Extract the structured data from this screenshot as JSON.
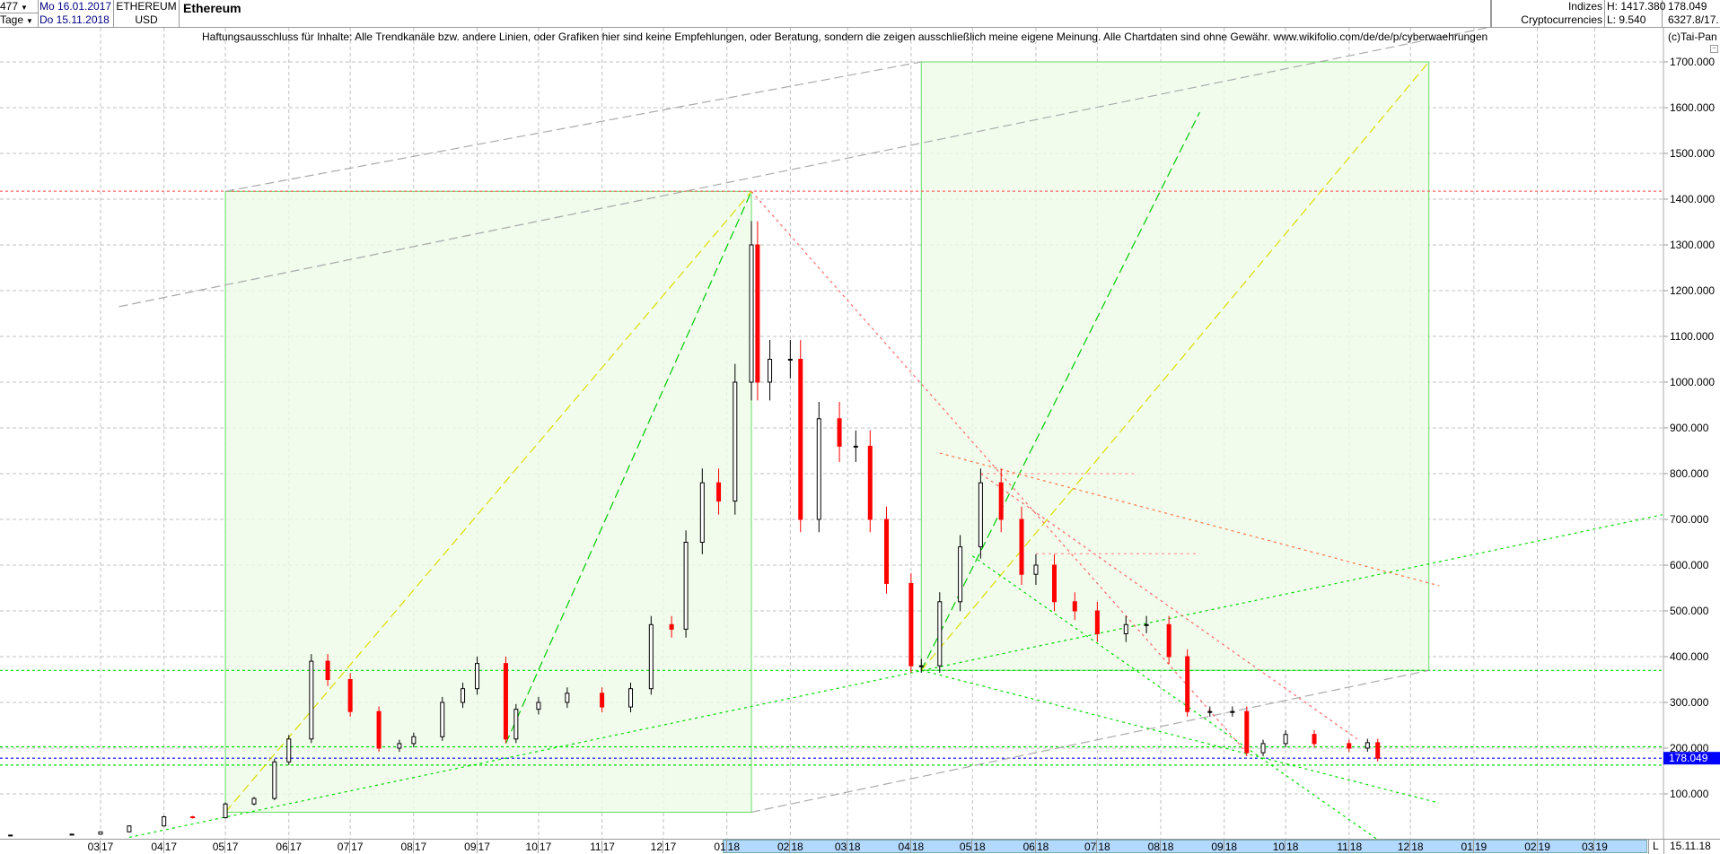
{
  "header": {
    "bar_count": "477",
    "period": "Tage",
    "date_from": "Mo 16.01.2017",
    "date_to": "Do 15.11.2018",
    "symbol": "ETHEREUM",
    "currency": "USD",
    "title": "Ethereum",
    "group1": "Indizes",
    "group2": "Cryptocurrencies",
    "high": "H: 1417.380",
    "low": "L: 9.540",
    "last": "178.049",
    "extra": "6327.8/17."
  },
  "disclaimer": "Haftungsausschluss für Inhalte: Alle Trendkanäle bzw. andere Linien, oder Grafiken hier sind keine Empfehlungen, oder Beratung, sondern die zeigen ausschließlich meine eigene Meinung. Alle Chartdaten sind ohne Gewähr.  www.wikifolio.com/de/de/p/cyberwaehrungen",
  "copyright": "(c)Tai-Pan",
  "footer": {
    "mode": "L",
    "date": "15.11.18"
  },
  "colors": {
    "up": "#000000",
    "down": "#ff0000",
    "last_price": "#0000ff",
    "grid": "#c0c0c0",
    "box_fill": "#eefbe8",
    "box_stroke": "#66dd66"
  },
  "chart_data": {
    "type": "candlestick",
    "ylim": [
      0,
      1750
    ],
    "xlim": [
      "2017-01-16",
      "2019-04-03"
    ],
    "yticks": [
      100,
      200,
      300,
      400,
      500,
      600,
      700,
      800,
      900,
      1000,
      1100,
      1200,
      1300,
      1400,
      1500,
      1600,
      1700
    ],
    "ytick_labels": [
      "100.000",
      "200.000",
      "300.000",
      "400.000",
      "500.000",
      "600.000",
      "700.000",
      "800.000",
      "900.000",
      "1000.000",
      "1100.000",
      "1200.000",
      "1300.000",
      "1400.000",
      "1500.000",
      "1600.000",
      "1700.000"
    ],
    "xticks": [
      "2017-03-01",
      "2017-04-01",
      "2017-05-01",
      "2017-06-01",
      "2017-07-01",
      "2017-08-01",
      "2017-09-01",
      "2017-10-01",
      "2017-11-01",
      "2017-12-01",
      "2018-01-01",
      "2018-02-01",
      "2018-03-01",
      "2018-04-01",
      "2018-05-01",
      "2018-06-01",
      "2018-07-01",
      "2018-08-01",
      "2018-09-01",
      "2018-10-01",
      "2018-11-01",
      "2018-12-01",
      "2019-01-01",
      "2019-02-01",
      "2019-03-01"
    ],
    "xtick_labels": [
      "03 17",
      "04 17",
      "05 17",
      "06 17",
      "07 17",
      "08 17",
      "09 17",
      "10 17",
      "11 17",
      "12 17",
      "01 18",
      "02 18",
      "03 18",
      "04 18",
      "05 18",
      "06 18",
      "07 18",
      "08 18",
      "09 18",
      "10 18",
      "11 18",
      "12 18",
      "01 19",
      "02 19",
      "03 19"
    ],
    "grid": true,
    "last_value": 178.049,
    "last_value_label": "178.049",
    "series": [
      [
        "2017-01-16",
        10
      ],
      [
        "2017-02-15",
        12
      ],
      [
        "2017-03-01",
        17
      ],
      [
        "2017-03-15",
        30
      ],
      [
        "2017-04-01",
        50
      ],
      [
        "2017-04-15",
        48
      ],
      [
        "2017-05-01",
        78
      ],
      [
        "2017-05-15",
        90
      ],
      [
        "2017-05-25",
        170
      ],
      [
        "2017-06-01",
        220
      ],
      [
        "2017-06-12",
        390
      ],
      [
        "2017-06-20",
        350
      ],
      [
        "2017-07-01",
        280
      ],
      [
        "2017-07-15",
        200
      ],
      [
        "2017-07-25",
        210
      ],
      [
        "2017-08-01",
        225
      ],
      [
        "2017-08-15",
        300
      ],
      [
        "2017-08-25",
        330
      ],
      [
        "2017-09-01",
        385
      ],
      [
        "2017-09-15",
        220
      ],
      [
        "2017-09-20",
        285
      ],
      [
        "2017-10-01",
        300
      ],
      [
        "2017-10-15",
        320
      ],
      [
        "2017-11-01",
        290
      ],
      [
        "2017-11-15",
        330
      ],
      [
        "2017-11-25",
        470
      ],
      [
        "2017-12-05",
        460
      ],
      [
        "2017-12-12",
        650
      ],
      [
        "2017-12-20",
        780
      ],
      [
        "2017-12-28",
        740
      ],
      [
        "2018-01-05",
        1000
      ],
      [
        "2018-01-13",
        1300
      ],
      [
        "2018-01-16",
        1000
      ],
      [
        "2018-01-22",
        1050
      ],
      [
        "2018-02-01",
        1050
      ],
      [
        "2018-02-06",
        700
      ],
      [
        "2018-02-15",
        920
      ],
      [
        "2018-02-25",
        860
      ],
      [
        "2018-03-05",
        860
      ],
      [
        "2018-03-12",
        700
      ],
      [
        "2018-03-20",
        560
      ],
      [
        "2018-04-01",
        380
      ],
      [
        "2018-04-06",
        380
      ],
      [
        "2018-04-15",
        520
      ],
      [
        "2018-04-25",
        640
      ],
      [
        "2018-05-05",
        780
      ],
      [
        "2018-05-15",
        700
      ],
      [
        "2018-05-25",
        580
      ],
      [
        "2018-06-01",
        600
      ],
      [
        "2018-06-10",
        520
      ],
      [
        "2018-06-20",
        500
      ],
      [
        "2018-07-01",
        450
      ],
      [
        "2018-07-15",
        470
      ],
      [
        "2018-07-25",
        470
      ],
      [
        "2018-08-05",
        400
      ],
      [
        "2018-08-14",
        280
      ],
      [
        "2018-08-25",
        280
      ],
      [
        "2018-09-05",
        280
      ],
      [
        "2018-09-12",
        190
      ],
      [
        "2018-09-20",
        210
      ],
      [
        "2018-10-01",
        230
      ],
      [
        "2018-10-15",
        210
      ],
      [
        "2018-11-01",
        200
      ],
      [
        "2018-11-10",
        212
      ],
      [
        "2018-11-15",
        178.049
      ]
    ],
    "horizontal_lines": [
      {
        "price": 1417.38,
        "color": "#ff6666"
      },
      {
        "price": 370,
        "color": "#00dd00"
      },
      {
        "price": 203,
        "color": "#00dd00"
      },
      {
        "price": 163,
        "color": "#00dd00"
      },
      {
        "price": 178.049,
        "color": "#0000ff"
      }
    ],
    "boxes": [
      {
        "from": [
          "2017-05-01",
          60
        ],
        "to": [
          "2018-01-13",
          1417
        ]
      },
      {
        "from": [
          "2018-04-06",
          370
        ],
        "to": [
          "2018-12-10",
          1700
        ]
      }
    ],
    "trendlines": [
      {
        "from": [
          "2017-09-15",
          210
        ],
        "to": [
          "2018-01-13",
          1417
        ],
        "color": "#00cc00",
        "style": "dash"
      },
      {
        "from": [
          "2018-04-06",
          370
        ],
        "to": [
          "2018-08-20",
          1590
        ],
        "color": "#00cc00",
        "style": "dash"
      },
      {
        "from": [
          "2017-05-01",
          60
        ],
        "to": [
          "2018-01-13",
          1417
        ],
        "color": "#dddd00",
        "style": "dash"
      },
      {
        "from": [
          "2018-04-06",
          370
        ],
        "to": [
          "2018-12-10",
          1700
        ],
        "color": "#dddd00",
        "style": "dash"
      },
      {
        "from": [
          "2017-03-10",
          1165
        ],
        "to": [
          "2019-03-20",
          1840
        ],
        "color": "#aaaaaa",
        "style": "dash"
      },
      {
        "from": [
          "2017-05-01",
          1417
        ],
        "to": [
          "2018-04-06",
          1700
        ],
        "color": "#aaaaaa",
        "style": "dash"
      },
      {
        "from": [
          "2018-01-13",
          60
        ],
        "to": [
          "2018-12-10",
          370
        ],
        "color": "#aaaaaa",
        "style": "dash"
      },
      {
        "from": [
          "2017-03-15",
          5
        ],
        "to": [
          "2019-04-03",
          710
        ],
        "color": "#00dd00",
        "style": "dot"
      },
      {
        "from": [
          "2018-04-06",
          370
        ],
        "to": [
          "2018-12-15",
          80
        ],
        "color": "#00dd00",
        "style": "dot"
      },
      {
        "from": [
          "2018-05-01",
          620
        ],
        "to": [
          "2018-11-15",
          0
        ],
        "color": "#00dd00",
        "style": "dot"
      },
      {
        "from": [
          "2018-01-13",
          1417
        ],
        "to": [
          "2018-09-12",
          190
        ],
        "color": "#ff6666",
        "style": "dot"
      },
      {
        "from": [
          "2018-05-05",
          800
        ],
        "to": [
          "2018-11-05",
          220
        ],
        "color": "#ff6666",
        "style": "dot"
      },
      {
        "from": [
          "2018-04-15",
          845
        ],
        "to": [
          "2018-12-15",
          555
        ],
        "color": "#ff7744",
        "style": "dot"
      },
      {
        "from": [
          "2018-05-05",
          800
        ],
        "to": [
          "2018-07-20",
          800
        ],
        "color": "#ff9999",
        "style": "dot"
      },
      {
        "from": [
          "2018-06-01",
          625
        ],
        "to": [
          "2018-08-20",
          625
        ],
        "color": "#ff9999",
        "style": "dot"
      }
    ]
  }
}
